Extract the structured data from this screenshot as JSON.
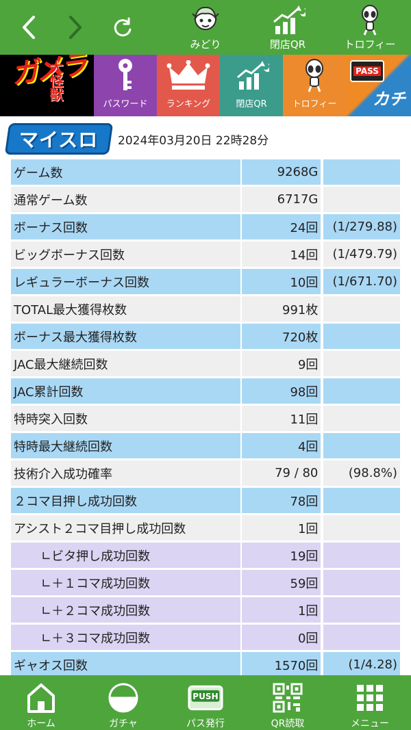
{
  "topnav": {
    "back_icon": "chevron-left-icon",
    "forward_icon": "chevron-right-icon",
    "refresh_icon": "refresh-icon",
    "items": [
      {
        "label": "みどり",
        "icon": "character-avatar-icon"
      },
      {
        "label": "閉店QR",
        "icon": "bar-chart-moon-icon"
      },
      {
        "label": "トロフィー",
        "icon": "alien-trophy-icon"
      }
    ]
  },
  "banner": {
    "logo_text": "ガメラ",
    "logo_sub": "大怪獣",
    "tiles": [
      {
        "label": "パスワード",
        "icon": "key-icon"
      },
      {
        "label": "ランキング",
        "icon": "crown-icon"
      },
      {
        "label": "閉店QR",
        "icon": "bar-chart-moon-icon"
      },
      {
        "label": "トロフィー",
        "icon": "alien-trophy-icon"
      }
    ],
    "pass_badge": "PASS",
    "kachi_text": "カチ"
  },
  "header": {
    "brand": "マイスロ",
    "datetime": "2024年03月20日 22時28分"
  },
  "rows": [
    {
      "label": "ゲーム数",
      "value": "9268G",
      "extra": ""
    },
    {
      "label": "通常ゲーム数",
      "value": "6717G",
      "extra": ""
    },
    {
      "label": "ボーナス回数",
      "value": "24回",
      "extra": "(1/279.88)"
    },
    {
      "label": "ビッグボーナス回数",
      "value": "14回",
      "extra": "(1/479.79)"
    },
    {
      "label": "レギュラーボーナス回数",
      "value": "10回",
      "extra": "(1/671.70)"
    },
    {
      "label": "TOTAL最大獲得枚数",
      "value": "991枚",
      "extra": ""
    },
    {
      "label": "ボーナス最大獲得枚数",
      "value": "720枚",
      "extra": ""
    },
    {
      "label": "JAC最大継続回数",
      "value": "9回",
      "extra": ""
    },
    {
      "label": "JAC累計回数",
      "value": "98回",
      "extra": ""
    },
    {
      "label": "特時突入回数",
      "value": "11回",
      "extra": ""
    },
    {
      "label": "特時最大継続回数",
      "value": "4回",
      "extra": ""
    },
    {
      "label": "技術介入成功確率",
      "value": "79 / 80",
      "extra": "(98.8%)"
    },
    {
      "label": "２コマ目押し成功回数",
      "value": "78回",
      "extra": ""
    },
    {
      "label": "アシスト２コマ目押し成功回数",
      "value": "1回",
      "extra": ""
    },
    {
      "label": "∟ビタ押し成功回数",
      "value": "19回",
      "extra": ""
    },
    {
      "label": "∟＋１コマ成功回数",
      "value": "59回",
      "extra": ""
    },
    {
      "label": "∟＋２コマ成功回数",
      "value": "1回",
      "extra": ""
    },
    {
      "label": "∟＋３コマ成功回数",
      "value": "0回",
      "extra": ""
    },
    {
      "label": "ギャオス回数",
      "value": "1570回",
      "extra": "(1/4.28)"
    }
  ],
  "tabbar": {
    "items": [
      {
        "label": "ホーム",
        "icon": "home-icon"
      },
      {
        "label": "ガチャ",
        "icon": "gacha-capsule-icon"
      },
      {
        "label": "パス発行",
        "icon": "push-button-icon"
      },
      {
        "label": "QR読取",
        "icon": "qr-code-icon"
      },
      {
        "label": "メニュー",
        "icon": "grid-menu-icon"
      }
    ]
  },
  "colors": {
    "nav_green": "#4ea53c",
    "row_blue": "#a9d8f5",
    "row_gray": "#efefef",
    "row_lavender": "#dcd4f3"
  }
}
